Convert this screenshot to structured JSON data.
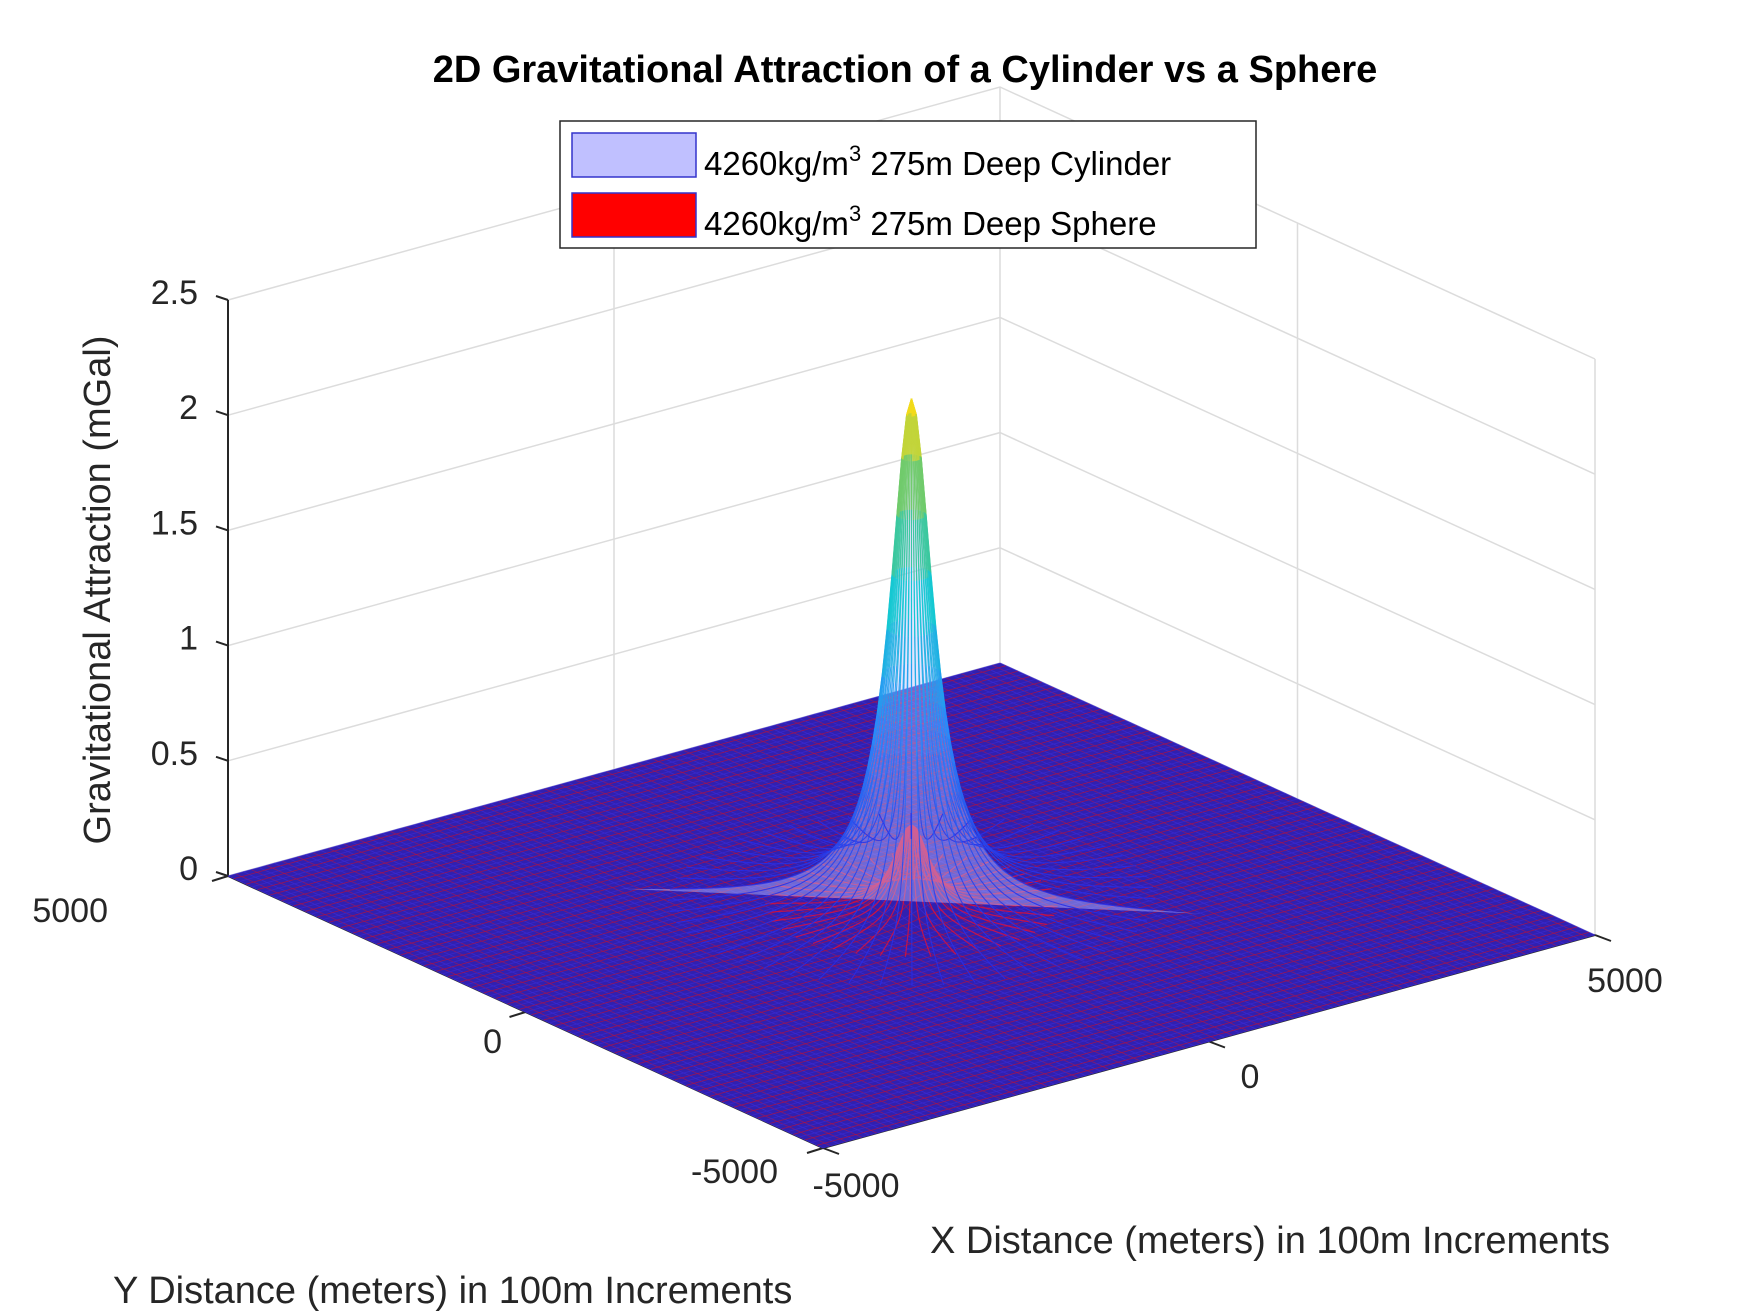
{
  "chart_data": {
    "type": "surface",
    "title": "2D Gravitational Attraction of a Cylinder vs a Sphere",
    "xlabel": "X Distance (meters) in 100m Increments",
    "ylabel": "Y Distance (meters) in 100m Increments",
    "zlabel": "Gravitational Attraction (mGal)",
    "xlim": [
      -5000,
      5000
    ],
    "ylim": [
      -5000,
      5000
    ],
    "zlim": [
      0,
      2.5
    ],
    "x_ticks": [
      "-5000",
      "0",
      "5000"
    ],
    "y_ticks": [
      "-5000",
      "0",
      "5000"
    ],
    "z_ticks": [
      "0",
      "0.5",
      "1",
      "1.5",
      "2",
      "2.5"
    ],
    "grid": true,
    "legend_position": "top-center",
    "series": [
      {
        "name": "4260kg/m3 275m Deep Cylinder",
        "legend_parts": [
          "4260kg/m",
          "3",
          " 275m Deep Cylinder"
        ],
        "peak": 2.2,
        "color": "#c0c0ff",
        "edge_color": "#3333cc"
      },
      {
        "name": "4260kg/m3 275m Deep Sphere",
        "legend_parts": [
          "4260kg/m",
          "3",
          " 275m Deep Sphere"
        ],
        "peak": 0.35,
        "color": "#ff0000",
        "edge_color": "#3333cc"
      }
    ],
    "grid_step": 100,
    "depth": 275
  }
}
